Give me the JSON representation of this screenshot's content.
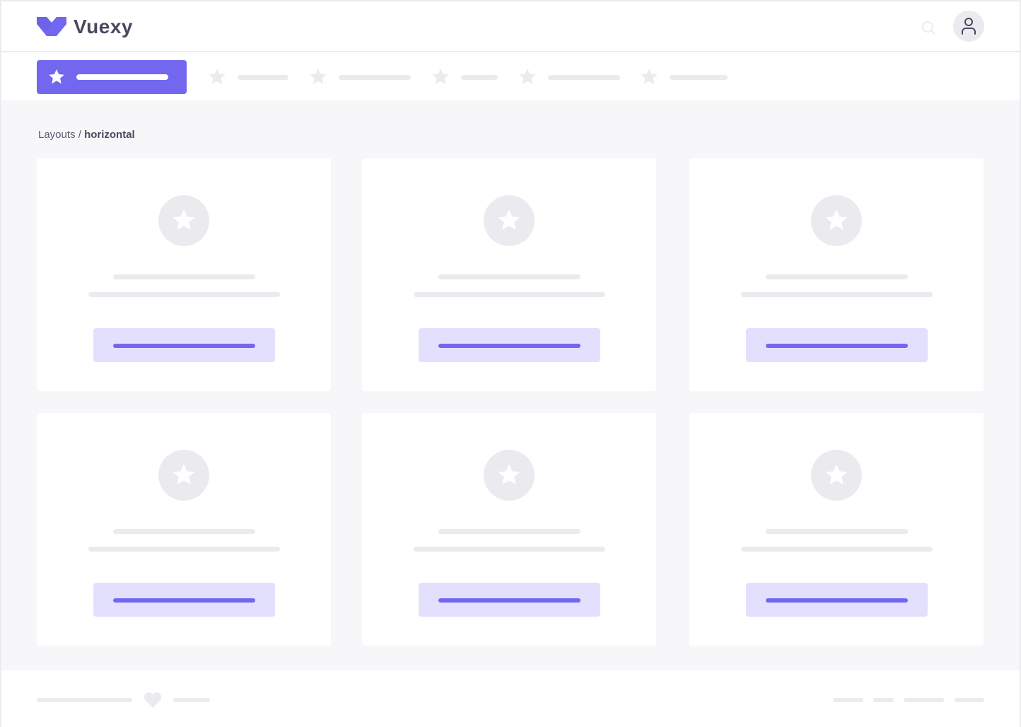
{
  "header": {
    "brand": "Vuexy",
    "logo_icon": "vuexy-logo",
    "search_icon": "search-icon",
    "avatar_icon": "user-icon"
  },
  "nav": {
    "active_icon": "star-icon",
    "item_icon": "star-icon",
    "items_count_shown": 6
  },
  "breadcrumb": {
    "parent": "Layouts",
    "separator": " / ",
    "current": "horizontal"
  },
  "footer": {
    "icon": "heart-icon"
  },
  "colors": {
    "primary": "#7367f0",
    "primary_light": "#e3e0fd",
    "placeholder": "#ebebef",
    "background": "#f7f7f9",
    "text": "#4b4760"
  }
}
